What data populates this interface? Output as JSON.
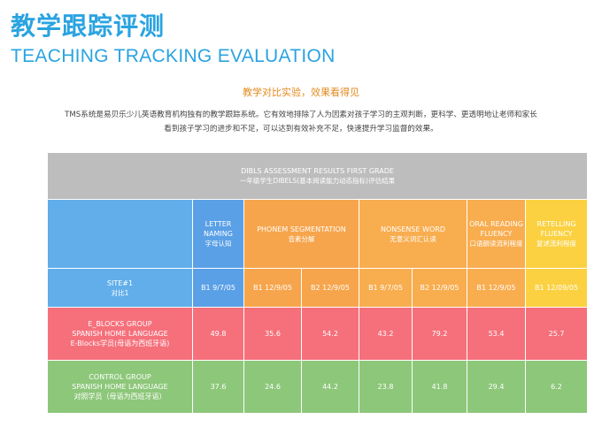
{
  "header": {
    "title_cn": "教学跟踪评测",
    "title_en": "TEACHING TRACKING EVALUATION"
  },
  "subtitle": "教学对比实验，效果看得见",
  "description": {
    "line1": "TMS系统是易贝乐少儿英语教育机构独有的教学跟踪系统。它有效地排除了人为因素对孩子学习的主观判断，更科学、更透明地让老师和家长",
    "line2": "看到孩子学习的进步和不足，可以达到有效补充不足，快速提升学习监督的效果。"
  },
  "table": {
    "title_en": "DIBLS ASSESSMENT RESULTS FIRST GRADE",
    "title_cn": "一年级学生DIBELS(基本阅读能力动态指标)评估结果",
    "columns": [
      {
        "en": "LETTER NAMING",
        "cn": "字母认知"
      },
      {
        "en": "PHONEM SEGMENTATION",
        "cn": "音素分解"
      },
      {
        "en": "NONSENSE WORD",
        "cn": "无意义词汇认读"
      },
      {
        "en": "ORAL READING FLUENCY",
        "cn": "口语朗读流利程度"
      },
      {
        "en": "RETELLING FLUENCY",
        "cn": "复述流利程度"
      }
    ],
    "site_row": {
      "label_en": "SITE#1",
      "label_cn": "对比1",
      "dates": [
        "B1 9/7/05",
        "B1 12/9/05",
        "B2 12/9/05",
        "B1 9/7/05",
        "B2 12/9/05",
        "B1 12/9/05",
        "B1 12/09/05"
      ]
    },
    "rows": [
      {
        "label_line1": "E_BLOCKS GROUP",
        "label_line2": "SPANISH HOME LANGUAGE",
        "label_line3": "E-Blocks学员(母语为西班牙语)",
        "values": [
          "49.8",
          "35.6",
          "54.2",
          "43.2",
          "79.2",
          "53.4",
          "25.7"
        ]
      },
      {
        "label_line1": "CONTROL GROUP",
        "label_line2": "SPANISH HOME LANGUAGE",
        "label_line3": "对照学员（母语为西班牙语）",
        "values": [
          "37.6",
          "24.6",
          "44.2",
          "23.8",
          "41.8",
          "29.4",
          "6.2"
        ]
      }
    ]
  }
}
